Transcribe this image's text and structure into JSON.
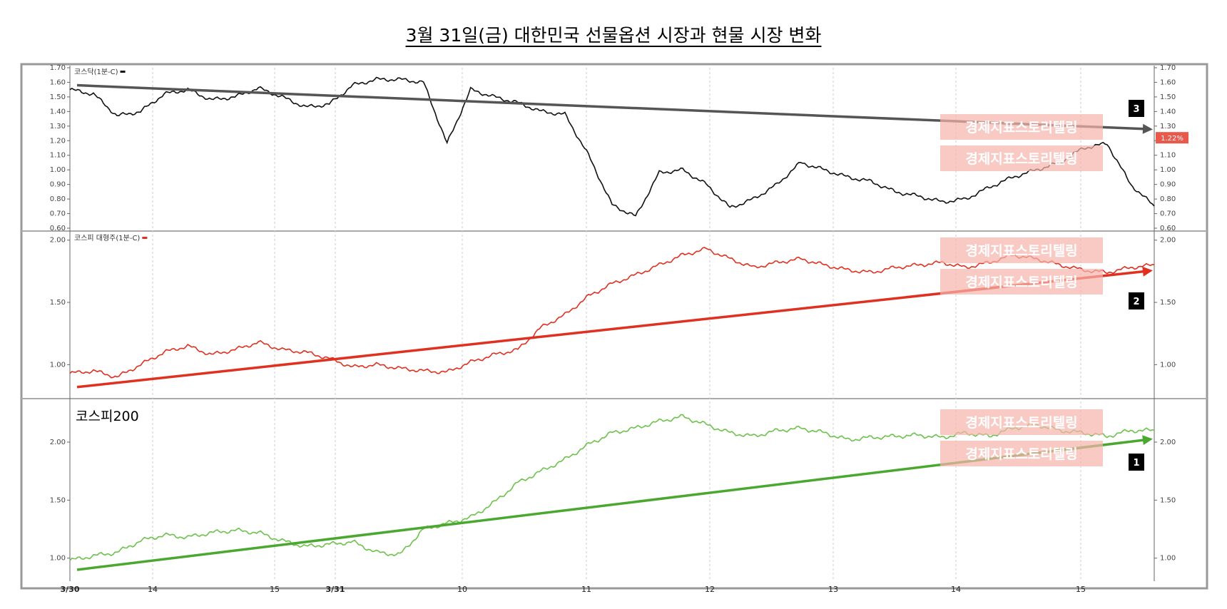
{
  "title": "3월 31일(금) 대한민국 선물옵션 시장과 현물 시장 변화",
  "watermark": "경제지표스토리텔링",
  "last_value_tag": "1.22%",
  "x_axis": {
    "labels": [
      "3/30",
      "14",
      "15",
      "3/31",
      "10",
      "11",
      "12",
      "13",
      "14",
      "15"
    ]
  },
  "chart_data": [
    {
      "type": "line",
      "legend": "코스닥(1분-C)",
      "series": [
        {
          "color": "#111111",
          "x": [
            0,
            0.5,
            1,
            1.5,
            2,
            2.5,
            3,
            3.5,
            4,
            4.5,
            5,
            5.5,
            6,
            6.5,
            7,
            7.5,
            8,
            8.5,
            9,
            9.5,
            10,
            10.5,
            11,
            11.5,
            12,
            12.5,
            13,
            13.5,
            14,
            14.5,
            15,
            15.5,
            16,
            16.5,
            17,
            17.5,
            18,
            18.5,
            19,
            19.5,
            20,
            20.5,
            21,
            21.5,
            22,
            22.5,
            23
          ],
          "y": [
            1.55,
            1.52,
            1.37,
            1.4,
            1.52,
            1.55,
            1.48,
            1.5,
            1.56,
            1.5,
            1.43,
            1.45,
            1.58,
            1.62,
            1.62,
            1.6,
            1.18,
            1.55,
            1.5,
            1.46,
            1.4,
            1.38,
            1.1,
            0.76,
            0.68,
            0.98,
            1.0,
            0.9,
            0.74,
            0.8,
            0.9,
            1.05,
            1.0,
            0.95,
            0.92,
            0.85,
            0.82,
            0.78,
            0.8,
            0.88,
            0.95,
            1.0,
            1.05,
            1.15,
            1.18,
            0.9,
            0.75
          ]
        }
      ],
      "trend": {
        "label": "3",
        "color": "#555555",
        "y": [
          1.58,
          1.28
        ]
      },
      "yticks": [
        "0.60",
        "0.70",
        "0.80",
        "0.90",
        "1.00",
        "1.10",
        "1.20",
        "1.30",
        "1.40",
        "1.50",
        "1.60",
        "1.70"
      ],
      "ylim": [
        0.6,
        1.7
      ]
    },
    {
      "type": "line",
      "legend": "코스피 대형주(1분-C)",
      "series": [
        {
          "color": "#e03020",
          "x": [
            0,
            0.5,
            1,
            1.5,
            2,
            2.5,
            3,
            3.5,
            4,
            4.5,
            5,
            5.5,
            6,
            6.5,
            7,
            7.5,
            8,
            8.5,
            9,
            9.5,
            10,
            10.5,
            11,
            11.5,
            12,
            12.5,
            13,
            13.5,
            14,
            14.5,
            15,
            15.5,
            16,
            16.5,
            17,
            17.5,
            18,
            18.5,
            19,
            19.5,
            20,
            20.5,
            21,
            21.5,
            22,
            22.5,
            23
          ],
          "y": [
            0.93,
            0.95,
            0.9,
            1.0,
            1.1,
            1.15,
            1.08,
            1.12,
            1.18,
            1.12,
            1.1,
            1.05,
            0.98,
            1.0,
            0.97,
            0.95,
            0.94,
            1.02,
            1.08,
            1.12,
            1.3,
            1.4,
            1.55,
            1.65,
            1.72,
            1.8,
            1.88,
            1.93,
            1.85,
            1.78,
            1.82,
            1.85,
            1.8,
            1.76,
            1.74,
            1.78,
            1.8,
            1.82,
            1.78,
            1.82,
            1.88,
            1.85,
            1.8,
            1.76,
            1.74,
            1.78,
            1.8
          ]
        }
      ],
      "trend": {
        "label": "2",
        "color": "#e03020",
        "y": [
          0.82,
          1.75
        ]
      },
      "yticks": [
        "1.00",
        "1.50",
        "2.00"
      ],
      "ylim": [
        0.75,
        2.05
      ]
    },
    {
      "type": "line",
      "legend": "코스피200",
      "series": [
        {
          "color": "#6cc24a",
          "x": [
            0,
            0.5,
            1,
            1.5,
            2,
            2.5,
            3,
            3.5,
            4,
            4.5,
            5,
            5.5,
            6,
            6.5,
            7,
            7.5,
            8,
            8.5,
            9,
            9.5,
            10,
            10.5,
            11,
            11.5,
            12,
            12.5,
            13,
            13.5,
            14,
            14.5,
            15,
            15.5,
            16,
            16.5,
            17,
            17.5,
            18,
            18.5,
            19,
            19.5,
            20,
            20.5,
            21,
            21.5,
            22,
            22.5,
            23
          ],
          "y": [
            0.98,
            1.02,
            1.05,
            1.15,
            1.2,
            1.18,
            1.22,
            1.24,
            1.22,
            1.15,
            1.1,
            1.12,
            1.14,
            1.05,
            1.03,
            1.25,
            1.3,
            1.35,
            1.48,
            1.65,
            1.75,
            1.85,
            1.98,
            2.08,
            2.12,
            2.18,
            2.22,
            2.15,
            2.08,
            2.05,
            2.1,
            2.12,
            2.08,
            2.02,
            2.04,
            2.05,
            2.06,
            2.04,
            2.08,
            2.05,
            2.12,
            2.15,
            2.1,
            2.08,
            2.05,
            2.1,
            2.1
          ]
        }
      ],
      "trend": {
        "label": "1",
        "color": "#4aa830",
        "y": [
          0.9,
          2.02
        ]
      },
      "yticks": [
        "1.00",
        "1.50",
        "2.00"
      ],
      "ylim": [
        0.82,
        2.35
      ]
    }
  ]
}
